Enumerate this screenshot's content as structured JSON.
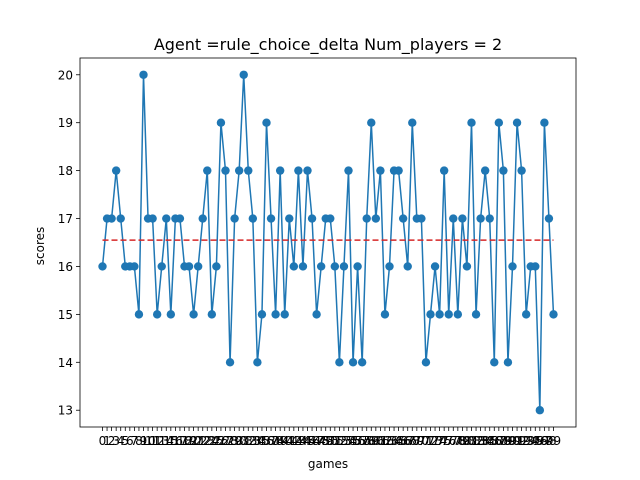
{
  "chart_data": {
    "type": "line",
    "title": "Agent =rule_choice_delta  Num_players = 2",
    "xlabel": "games",
    "ylabel": "scores",
    "ylim": [
      12.65,
      20.35
    ],
    "yticks": [
      13,
      14,
      15,
      16,
      17,
      18,
      19,
      20
    ],
    "grid": false,
    "legend": "none",
    "series": [
      {
        "color": "#1f77b4",
        "marker": "circle",
        "x": [
          0,
          1,
          2,
          3,
          4,
          5,
          6,
          7,
          8,
          9,
          10,
          11,
          12,
          13,
          14,
          15,
          16,
          17,
          18,
          19,
          20,
          21,
          22,
          23,
          24,
          25,
          26,
          27,
          28,
          29,
          30,
          31,
          32,
          33,
          34,
          35,
          36,
          37,
          38,
          39,
          40,
          41,
          42,
          43,
          44,
          45,
          46,
          47,
          48,
          49,
          50,
          51,
          52,
          53,
          54,
          55,
          56,
          57,
          58,
          59,
          60,
          61,
          62,
          63,
          64,
          65,
          66,
          67,
          68,
          69,
          70,
          71,
          72,
          73,
          74,
          75,
          76,
          77,
          78,
          79,
          80,
          81,
          82,
          83,
          84,
          85,
          86,
          87,
          88,
          89,
          90,
          91,
          92,
          93,
          94,
          95,
          96,
          97,
          98,
          99
        ],
        "values": [
          16,
          17,
          17,
          18,
          17,
          16,
          16,
          16,
          15,
          20,
          17,
          17,
          15,
          16,
          17,
          15,
          17,
          17,
          16,
          16,
          15,
          16,
          17,
          18,
          15,
          16,
          19,
          18,
          14,
          17,
          18,
          20,
          18,
          17,
          14,
          15,
          19,
          17,
          15,
          18,
          15,
          17,
          16,
          18,
          16,
          18,
          17,
          15,
          16,
          17,
          17,
          16,
          14,
          16,
          18,
          14,
          16,
          14,
          17,
          19,
          17,
          18,
          15,
          16,
          18,
          18,
          17,
          16,
          19,
          17,
          17,
          14,
          15,
          16,
          15,
          18,
          15,
          17,
          15,
          17,
          16,
          19,
          15,
          17,
          18,
          17,
          14,
          19,
          18,
          14,
          16,
          19,
          18,
          15,
          16,
          16,
          13,
          19,
          17,
          15
        ]
      },
      {
        "color": "#d62728",
        "style": "dashed",
        "x": [
          0,
          99
        ],
        "values": [
          16.55,
          16.55
        ]
      }
    ],
    "xtick_labels": [
      "0",
      "1",
      "2",
      "3",
      "4",
      "5",
      "6",
      "7",
      "8",
      "9",
      "10",
      "11",
      "12",
      "13",
      "14",
      "15",
      "16",
      "17",
      "18",
      "19",
      "20",
      "21",
      "22",
      "23",
      "24",
      "25",
      "26",
      "27",
      "28",
      "29",
      "30",
      "31",
      "32",
      "33",
      "34",
      "35",
      "36",
      "37",
      "38",
      "39",
      "40",
      "41",
      "42",
      "43",
      "44",
      "45",
      "46",
      "47",
      "48",
      "49",
      "50",
      "51",
      "52",
      "53",
      "54",
      "55",
      "56",
      "57",
      "58",
      "59",
      "60",
      "61",
      "62",
      "63",
      "64",
      "65",
      "66",
      "67",
      "68",
      "69",
      "70",
      "71",
      "72",
      "73",
      "74",
      "75",
      "76",
      "77",
      "78",
      "79",
      "80",
      "81",
      "82",
      "83",
      "84",
      "85",
      "86",
      "87",
      "88",
      "89",
      "90",
      "91",
      "92",
      "93",
      "94",
      "95",
      "96",
      "97",
      "98",
      "99"
    ]
  }
}
